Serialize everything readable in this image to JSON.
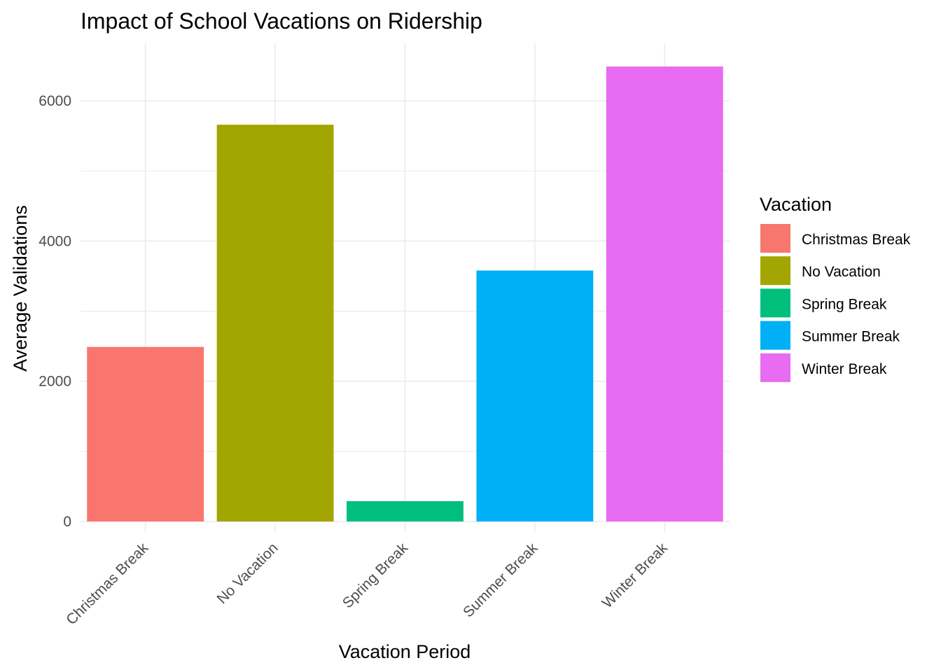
{
  "chart_data": {
    "type": "bar",
    "title": "Impact of School Vacations on Ridership",
    "xlabel": "Vacation Period",
    "ylabel": "Average Validations",
    "categories": [
      "Christmas Break",
      "No Vacation",
      "Spring Break",
      "Summer Break",
      "Winter Break"
    ],
    "values": [
      2490,
      5660,
      290,
      3580,
      6490
    ],
    "colors": [
      "#F8766D",
      "#A3A500",
      "#00BF7D",
      "#00B0F6",
      "#E76BF3"
    ],
    "ylim": [
      -150,
      6820
    ],
    "yticks": [
      0,
      2000,
      4000,
      6000
    ],
    "ytick_labels": [
      "0",
      "2000",
      "4000",
      "6000"
    ],
    "x_tick_rotation": -45,
    "grid": true,
    "legend": {
      "title": "Vacation",
      "position": "right",
      "entries": [
        "Christmas Break",
        "No Vacation",
        "Spring Break",
        "Summer Break",
        "Winter Break"
      ]
    }
  }
}
